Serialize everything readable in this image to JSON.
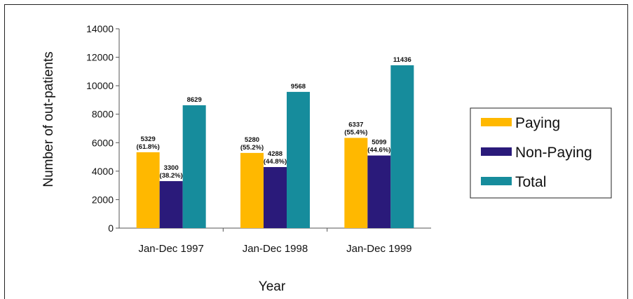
{
  "chart_data": {
    "type": "bar",
    "categories": [
      "Jan-Dec 1997",
      "Jan-Dec 1998",
      "Jan-Dec 1999"
    ],
    "series": [
      {
        "name": "Paying",
        "color": "#FFB800",
        "values": [
          5329,
          5280,
          6337
        ],
        "labels": [
          [
            "5329",
            "(61.8%)"
          ],
          [
            "5280",
            "(55.2%)"
          ],
          [
            "6337",
            "(55.4%)"
          ]
        ]
      },
      {
        "name": "Non-Paying",
        "color": "#2A1A7A",
        "values": [
          3300,
          4288,
          5099
        ],
        "labels": [
          [
            "3300",
            "(38.2%)"
          ],
          [
            "4288",
            "(44.8%)"
          ],
          [
            "5099",
            "(44.6%)"
          ]
        ]
      },
      {
        "name": "Total",
        "color": "#168C9C",
        "values": [
          8629,
          9568,
          11436
        ],
        "labels": [
          [
            "8629"
          ],
          [
            "9568"
          ],
          [
            "11436"
          ]
        ]
      }
    ],
    "xlabel": "Year",
    "ylabel": "Number of out-patients",
    "ylim": [
      0,
      14000
    ],
    "yticks": [
      "0",
      "2000",
      "4000",
      "6000",
      "8000",
      "10000",
      "12000",
      "14000"
    ],
    "grid": false,
    "legend_position": "right"
  }
}
